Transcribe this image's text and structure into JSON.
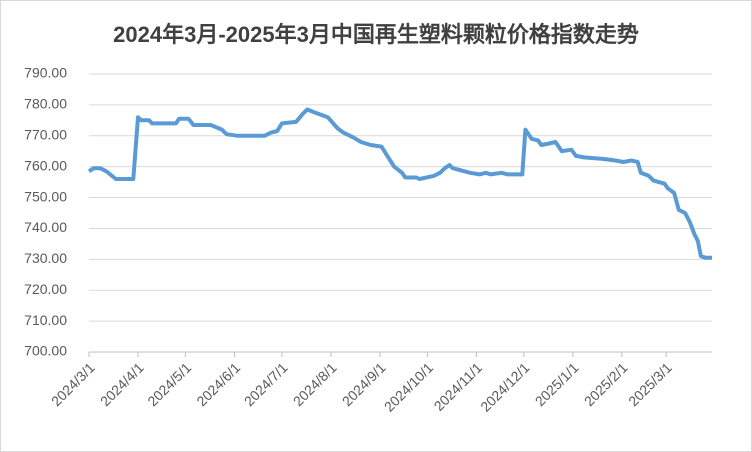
{
  "chart_data": {
    "type": "line",
    "title": "2024年3月-2025年3月中国再生塑料颗粒价格指数走势",
    "x": [
      "2024/3/1",
      "2024/3/4",
      "2024/3/8",
      "2024/3/12",
      "2024/3/18",
      "2024/3/29",
      "2024/4/1",
      "2024/4/3",
      "2024/4/8",
      "2024/4/10",
      "2024/4/25",
      "2024/4/27",
      "2024/5/3",
      "2024/5/6",
      "2024/5/17",
      "2024/5/24",
      "2024/5/27",
      "2024/6/3",
      "2024/6/20",
      "2024/6/24",
      "2024/6/28",
      "2024/7/1",
      "2024/7/10",
      "2024/7/14",
      "2024/7/17",
      "2024/7/22",
      "2024/7/30",
      "2024/8/5",
      "2024/8/9",
      "2024/8/15",
      "2024/8/20",
      "2024/8/26",
      "2024/9/2",
      "2024/9/5",
      "2024/9/10",
      "2024/9/15",
      "2024/9/17",
      "2024/9/24",
      "2024/9/26",
      "2024/10/5",
      "2024/10/9",
      "2024/10/12",
      "2024/10/15",
      "2024/10/17",
      "2024/10/28",
      "2024/11/3",
      "2024/11/7",
      "2024/11/10",
      "2024/11/17",
      "2024/11/21",
      "2024/11/30",
      "2024/12/2",
      "2024/12/6",
      "2024/12/10",
      "2024/12/12",
      "2024/12/17",
      "2024/12/21",
      "2024/12/25",
      "2024/12/31",
      "2025/1/3",
      "2025/1/8",
      "2025/1/20",
      "2025/1/28",
      "2025/2/2",
      "2025/2/7",
      "2025/2/11",
      "2025/2/13",
      "2025/2/18",
      "2025/2/21",
      "2025/2/28",
      "2025/3/2",
      "2025/3/6",
      "2025/3/9",
      "2025/3/13",
      "2025/3/16",
      "2025/3/19",
      "2025/3/21",
      "2025/3/23",
      "2025/3/26",
      "2025/3/30"
    ],
    "series": [
      {
        "color": "#5b9bd5",
        "values": [
          758.5,
          759.5,
          759.5,
          758.5,
          756,
          756,
          776,
          775,
          775,
          774,
          774,
          775.5,
          775.5,
          773.5,
          773.5,
          772,
          770.5,
          770,
          770,
          771,
          771.5,
          774,
          774.5,
          777,
          778.5,
          777.5,
          776,
          772.5,
          771,
          769.5,
          768,
          767,
          766.5,
          764,
          760,
          758,
          756.5,
          756.5,
          756,
          757,
          758,
          759.5,
          760.5,
          759.5,
          758,
          757.5,
          758,
          757.5,
          758,
          757.5,
          757.5,
          772,
          769,
          768.5,
          767,
          767.5,
          768,
          765,
          765.5,
          763.5,
          763,
          762.5,
          762,
          761.5,
          762,
          761.5,
          758,
          757,
          755.5,
          754.5,
          753,
          751.5,
          746,
          745,
          742,
          738,
          736,
          731,
          730.5,
          730.5
        ]
      }
    ],
    "xlim": [
      "2024/3/1",
      "2025/3/30"
    ],
    "xticks": [
      "2024/3/1",
      "2024/4/1",
      "2024/5/1",
      "2024/6/1",
      "2024/7/1",
      "2024/8/1",
      "2024/9/1",
      "2024/10/1",
      "2024/11/1",
      "2024/12/1",
      "2025/1/1",
      "2025/2/1",
      "2025/3/1"
    ],
    "ylim": [
      700,
      790
    ],
    "yticks": [
      {
        "value": 700,
        "label": "700.00"
      },
      {
        "value": 710,
        "label": "710.00"
      },
      {
        "value": 720,
        "label": "720.00"
      },
      {
        "value": 730,
        "label": "730.00"
      },
      {
        "value": 740,
        "label": "740.00"
      },
      {
        "value": 750,
        "label": "750.00"
      },
      {
        "value": 760,
        "label": "760.00"
      },
      {
        "value": 770,
        "label": "770.00"
      },
      {
        "value": 780,
        "label": "780.00"
      },
      {
        "value": 790,
        "label": "790.00"
      }
    ],
    "grid": true
  }
}
